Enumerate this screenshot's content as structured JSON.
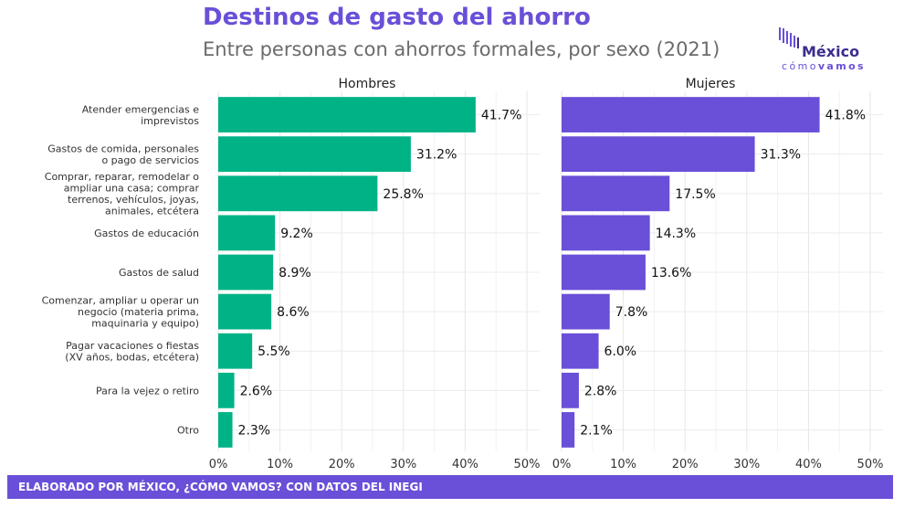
{
  "title": "Destinos de gasto del ahorro",
  "subtitle": "Entre personas con ahorros formales, por sexo (2021)",
  "logo": {
    "name": "México",
    "tagline_light": "cómo",
    "tagline_bold": "vamos"
  },
  "footer": "ELABORADO POR MÉXICO, ¿CÓMO VAMOS? CON DATOS DEL INEGI",
  "colors": {
    "hombres": "#00b386",
    "mujeres": "#6a4fd8",
    "accent": "#6a4fd8"
  },
  "chart_data": {
    "type": "bar",
    "orientation": "horizontal",
    "categories": [
      [
        "Atender emergencias e",
        "imprevistos"
      ],
      [
        "Gastos de comida, personales",
        "o pago de servicios"
      ],
      [
        "Comprar, reparar, remodelar o",
        "ampliar una casa; comprar",
        "terrenos, vehículos, joyas,",
        "animales, etcétera"
      ],
      [
        "Gastos de educación"
      ],
      [
        "Gastos de salud"
      ],
      [
        "Comenzar, ampliar u operar un",
        "negocio (materia prima,",
        "maquinaria y equipo)"
      ],
      [
        "Pagar vacaciones o fiestas",
        "(XV años, bodas, etcétera)"
      ],
      [
        "Para la vejez o retiro"
      ],
      [
        "Otro"
      ]
    ],
    "panels": [
      {
        "name": "Hombres",
        "values": [
          41.7,
          31.2,
          25.8,
          9.2,
          8.9,
          8.6,
          5.5,
          2.6,
          2.3
        ],
        "labels": [
          "41.7%",
          "31.2%",
          "25.8%",
          "9.2%",
          "8.9%",
          "8.6%",
          "5.5%",
          "2.6%",
          "2.3%"
        ]
      },
      {
        "name": "Mujeres",
        "values": [
          41.8,
          31.3,
          17.5,
          14.3,
          13.6,
          7.8,
          6.0,
          2.8,
          2.1
        ],
        "labels": [
          "41.8%",
          "31.3%",
          "17.5%",
          "14.3%",
          "13.6%",
          "7.8%",
          "6.0%",
          "2.8%",
          "2.1%"
        ]
      }
    ],
    "xlim": [
      0,
      50
    ],
    "xticks": [
      0,
      10,
      20,
      30,
      40,
      50
    ],
    "xtick_labels": [
      "0%",
      "10%",
      "20%",
      "30%",
      "40%",
      "50%"
    ],
    "grid": true
  }
}
